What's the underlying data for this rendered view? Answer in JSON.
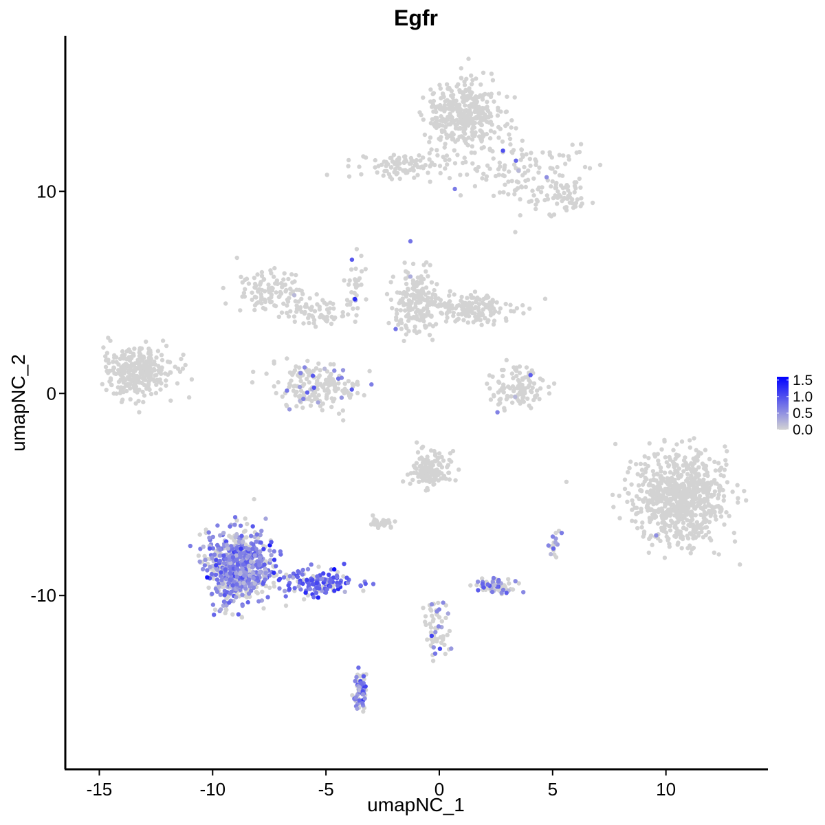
{
  "chart_data": {
    "type": "scatter",
    "title": "Egfr",
    "xlabel": "umapNC_1",
    "ylabel": "umapNC_2",
    "xlim": [
      -16.5,
      14.5
    ],
    "ylim": [
      -18.6,
      17.7
    ],
    "x_ticks": [
      -15,
      -10,
      -5,
      0,
      5,
      10
    ],
    "x_tick_labels": [
      "-15",
      "-10",
      "-5",
      "0",
      "5",
      "10"
    ],
    "y_ticks": [
      -10,
      0,
      10
    ],
    "y_tick_labels": [
      "-10",
      "0",
      "10"
    ],
    "grid": false,
    "color_scale": {
      "low_color": "#d3d3d3",
      "high_color": "#0000ff",
      "min": 0.0,
      "max": 1.6,
      "ticks": [
        1.5,
        1.0,
        0.5,
        0.0
      ],
      "tick_labels": [
        "1.5",
        "1.0",
        "0.5",
        "0.0"
      ],
      "legend_position": "right"
    },
    "clusters": [
      {
        "id": "c1",
        "cx": 1.0,
        "cy": 13.8,
        "sx": 1.0,
        "sy": 1.1,
        "n": 360,
        "expr_frac": 0.003,
        "expr_mean": 0.6
      },
      {
        "id": "c2",
        "cx": 3.8,
        "cy": 11.0,
        "sx": 1.6,
        "sy": 1.2,
        "n": 130,
        "expr_frac": 0.02,
        "expr_mean": 0.7
      },
      {
        "id": "c3",
        "cx": 5.3,
        "cy": 9.6,
        "sx": 0.7,
        "sy": 0.5,
        "n": 60,
        "expr_frac": 0.02,
        "expr_mean": 0.6
      },
      {
        "id": "c4",
        "cx": -1.5,
        "cy": 11.3,
        "sx": 1.3,
        "sy": 0.4,
        "n": 100,
        "expr_frac": 0.0,
        "expr_mean": 0.0
      },
      {
        "id": "c5",
        "cx": -13.3,
        "cy": 1.1,
        "sx": 1.0,
        "sy": 0.75,
        "n": 300,
        "expr_frac": 0.0,
        "expr_mean": 0.0
      },
      {
        "id": "c6",
        "cx": -7.5,
        "cy": 5.0,
        "sx": 0.9,
        "sy": 0.6,
        "n": 110,
        "expr_frac": 0.01,
        "expr_mean": 0.6
      },
      {
        "id": "c7",
        "cx": -5.5,
        "cy": 4.0,
        "sx": 1.0,
        "sy": 0.4,
        "n": 60,
        "expr_frac": 0.0,
        "expr_mean": 0.0
      },
      {
        "id": "c8",
        "cx": -3.8,
        "cy": 5.5,
        "sx": 0.3,
        "sy": 1.3,
        "n": 35,
        "expr_frac": 0.03,
        "expr_mean": 0.8
      },
      {
        "id": "c9",
        "cx": -5.3,
        "cy": 0.4,
        "sx": 1.2,
        "sy": 0.7,
        "n": 190,
        "expr_frac": 0.08,
        "expr_mean": 0.6
      },
      {
        "id": "c10",
        "cx": -1.0,
        "cy": 4.5,
        "sx": 0.6,
        "sy": 1.0,
        "n": 180,
        "expr_frac": 0.01,
        "expr_mean": 0.6
      },
      {
        "id": "c11",
        "cx": 1.5,
        "cy": 4.2,
        "sx": 1.2,
        "sy": 0.5,
        "n": 160,
        "expr_frac": 0.0,
        "expr_mean": 0.0
      },
      {
        "id": "c12",
        "cx": 3.4,
        "cy": 0.2,
        "sx": 0.7,
        "sy": 0.6,
        "n": 110,
        "expr_frac": 0.02,
        "expr_mean": 0.6
      },
      {
        "id": "c13",
        "cx": 10.6,
        "cy": -5.2,
        "sx": 1.3,
        "sy": 1.35,
        "n": 720,
        "expr_frac": 0.002,
        "expr_mean": 0.6
      },
      {
        "id": "c14",
        "cx": -0.4,
        "cy": -3.8,
        "sx": 0.5,
        "sy": 0.6,
        "n": 140,
        "expr_frac": 0.0,
        "expr_mean": 0.0
      },
      {
        "id": "c15",
        "cx": -8.8,
        "cy": -8.6,
        "sx": 0.9,
        "sy": 1.1,
        "n": 700,
        "expr_frac": 0.6,
        "expr_mean": 0.55
      },
      {
        "id": "c16",
        "cx": -5.3,
        "cy": -9.4,
        "sx": 1.1,
        "sy": 0.45,
        "n": 140,
        "expr_frac": 0.75,
        "expr_mean": 0.85
      },
      {
        "id": "c17",
        "cx": -2.5,
        "cy": -6.4,
        "sx": 0.3,
        "sy": 0.2,
        "n": 30,
        "expr_frac": 0.03,
        "expr_mean": 0.6
      },
      {
        "id": "c18",
        "cx": 2.4,
        "cy": -9.5,
        "sx": 0.6,
        "sy": 0.2,
        "n": 70,
        "expr_frac": 0.35,
        "expr_mean": 0.6
      },
      {
        "id": "c19",
        "cx": -3.5,
        "cy": -14.7,
        "sx": 0.18,
        "sy": 0.6,
        "n": 70,
        "expr_frac": 0.45,
        "expr_mean": 0.6
      },
      {
        "id": "c20",
        "cx": -0.2,
        "cy": -11.5,
        "sx": 0.35,
        "sy": 0.9,
        "n": 60,
        "expr_frac": 0.25,
        "expr_mean": 0.6
      },
      {
        "id": "c21",
        "cx": 5.1,
        "cy": -7.5,
        "sx": 0.15,
        "sy": 0.35,
        "n": 20,
        "expr_frac": 0.4,
        "expr_mean": 0.6
      }
    ]
  }
}
